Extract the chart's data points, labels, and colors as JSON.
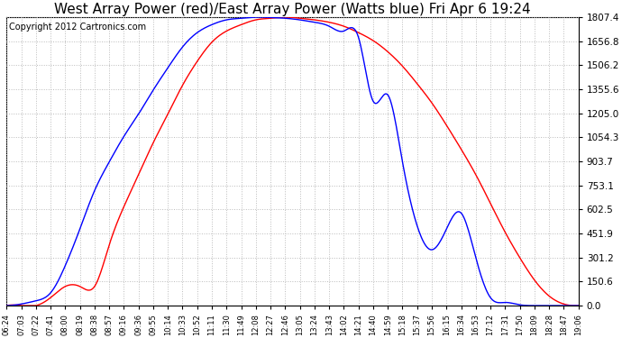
{
  "title": "West Array Power (red)/East Array Power (Watts blue) Fri Apr 6 19:24",
  "copyright": "Copyright 2012 Cartronics.com",
  "ymin": 0.0,
  "ymax": 1807.4,
  "yticks": [
    0.0,
    150.6,
    301.2,
    451.9,
    602.5,
    753.1,
    903.7,
    1054.3,
    1205.0,
    1355.6,
    1506.2,
    1656.8,
    1807.4
  ],
  "xtick_labels": [
    "06:24",
    "07:03",
    "07:22",
    "07:41",
    "08:00",
    "08:19",
    "08:38",
    "08:57",
    "09:16",
    "09:36",
    "09:55",
    "10:14",
    "10:33",
    "10:52",
    "11:11",
    "11:30",
    "11:49",
    "12:08",
    "12:27",
    "12:46",
    "13:05",
    "13:24",
    "13:43",
    "14:02",
    "14:21",
    "14:40",
    "14:59",
    "15:18",
    "15:37",
    "15:56",
    "16:15",
    "16:34",
    "16:53",
    "17:12",
    "17:31",
    "17:50",
    "18:09",
    "18:28",
    "18:47",
    "19:06"
  ],
  "bg_color": "#ffffff",
  "grid_color": "#bbbbbb",
  "red_color": "#ff0000",
  "blue_color": "#0000ff",
  "title_fontsize": 11,
  "copyright_fontsize": 7,
  "red_vals": [
    0,
    0,
    0,
    50,
    120,
    120,
    120,
    380,
    620,
    820,
    1020,
    1200,
    1380,
    1530,
    1650,
    1720,
    1760,
    1790,
    1800,
    1807,
    1800,
    1790,
    1775,
    1750,
    1710,
    1660,
    1590,
    1500,
    1390,
    1270,
    1130,
    980,
    820,
    640,
    460,
    300,
    160,
    60,
    10,
    0
  ],
  "blue_vals": [
    0,
    10,
    30,
    80,
    250,
    480,
    720,
    900,
    1060,
    1200,
    1350,
    1490,
    1620,
    1710,
    1760,
    1790,
    1800,
    1807,
    1805,
    1800,
    1790,
    1775,
    1750,
    1720,
    1680,
    1280,
    1320,
    900,
    500,
    350,
    480,
    580,
    300,
    50,
    20,
    5,
    0,
    0,
    0,
    0
  ]
}
